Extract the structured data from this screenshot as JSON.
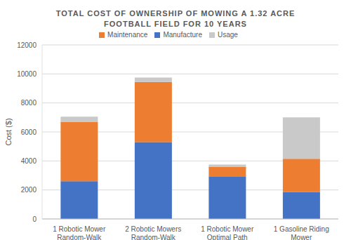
{
  "chart_data": {
    "type": "bar",
    "title": "TOTAL COST OF OWNERSHIP OF MOWING A 1.32 ACRE FOOTBALL FIELD FOR 10 YEARS",
    "ylabel": "Cost ($)",
    "categories": [
      "1 Robotic Mower Random-Walk",
      "2 Robotic Mowers Random-Walk",
      "1 Robotic Mower Optimal Path",
      "1 Gasoline Riding Mower"
    ],
    "series": [
      {
        "name": "Manufacture",
        "color": "#4472c4",
        "values": [
          2600,
          5300,
          2900,
          1850
        ]
      },
      {
        "name": "Maintenance",
        "color": "#ed7d31",
        "values": [
          4100,
          4150,
          700,
          2300
        ]
      },
      {
        "name": "Usage",
        "color": "#c9c9c9",
        "values": [
          350,
          300,
          150,
          2850
        ]
      }
    ],
    "stacked": true,
    "ylim": [
      0,
      12000
    ],
    "yticks": [
      0,
      2000,
      4000,
      6000,
      8000,
      10000,
      12000
    ],
    "grid": true,
    "legend": "top"
  }
}
